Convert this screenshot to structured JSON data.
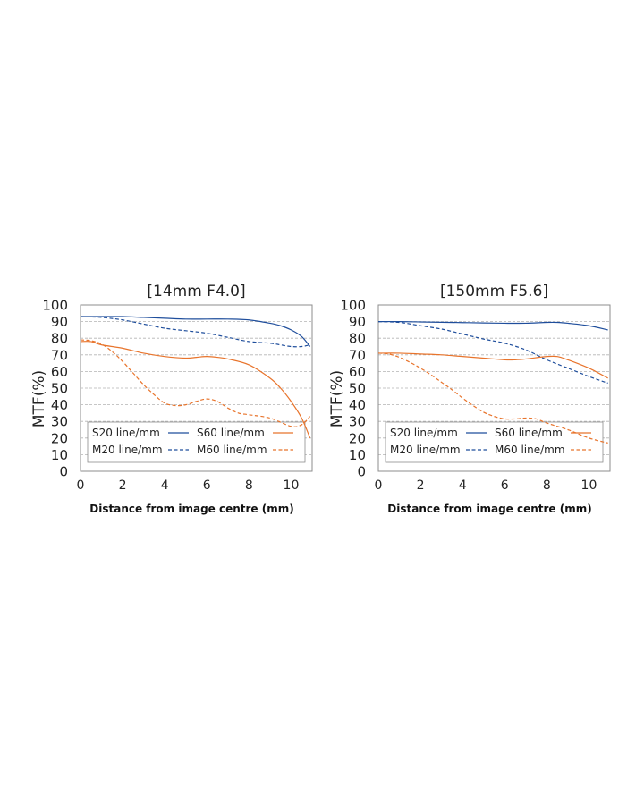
{
  "chart_data": [
    {
      "type": "line",
      "title": "[14mm F4.0]",
      "xlabel": "Distance from image centre (mm)",
      "ylabel": "MTF(%)",
      "xlim": [
        0,
        11
      ],
      "ylim": [
        0,
        100
      ],
      "xticks": [
        "0",
        "2",
        "4",
        "6",
        "8",
        "10"
      ],
      "yticks": [
        "0",
        "10",
        "20",
        "30",
        "40",
        "50",
        "60",
        "70",
        "80",
        "90",
        "100"
      ],
      "grid": true,
      "legend_position": "bottom",
      "series": [
        {
          "name": "S20 line/mm",
          "color": "#1f4e9c",
          "dash": false,
          "x": [
            0,
            1,
            2,
            3,
            4,
            5,
            6,
            7,
            8,
            9,
            9.5,
            10,
            10.5,
            10.9
          ],
          "y": [
            93,
            93,
            93,
            92.5,
            92,
            91.5,
            91.5,
            91.5,
            91,
            89,
            87.5,
            85,
            81,
            75
          ]
        },
        {
          "name": "M20 line/mm",
          "color": "#1f4e9c",
          "dash": true,
          "x": [
            0,
            1,
            2,
            3,
            4,
            5,
            6,
            7,
            8,
            9,
            9.5,
            10,
            10.5,
            10.9
          ],
          "y": [
            93,
            92.5,
            91,
            88.5,
            86,
            84.5,
            83,
            80.5,
            78,
            77,
            76,
            75,
            75,
            76
          ]
        },
        {
          "name": "S60 line/mm",
          "color": "#e8742c",
          "dash": false,
          "x": [
            0,
            0.5,
            1,
            2,
            3,
            4,
            5,
            5.5,
            6,
            6.5,
            7,
            8,
            9,
            9.5,
            10,
            10.5,
            10.9
          ],
          "y": [
            78,
            78,
            76,
            74,
            71,
            69,
            68,
            68.5,
            69,
            68.5,
            67.5,
            64,
            56,
            50,
            42,
            32,
            20
          ]
        },
        {
          "name": "M60 line/mm",
          "color": "#e8742c",
          "dash": true,
          "x": [
            0,
            0.5,
            1,
            1.5,
            2,
            2.5,
            3,
            3.5,
            4,
            4.5,
            5,
            5.5,
            6,
            6.5,
            7,
            7.5,
            8,
            9,
            10,
            10.5,
            10.9
          ],
          "y": [
            79,
            78.5,
            76.5,
            72,
            66,
            59,
            52,
            46,
            41,
            39.5,
            40,
            42,
            43.5,
            42,
            38,
            35,
            34,
            32,
            27,
            28,
            33
          ]
        }
      ]
    },
    {
      "type": "line",
      "title": "[150mm F5.6]",
      "xlabel": "Distance from image centre (mm)",
      "ylabel": "MTF(%)",
      "xlim": [
        0,
        11
      ],
      "ylim": [
        0,
        100
      ],
      "xticks": [
        "0",
        "2",
        "4",
        "6",
        "8",
        "10"
      ],
      "yticks": [
        "0",
        "10",
        "20",
        "30",
        "40",
        "50",
        "60",
        "70",
        "80",
        "90",
        "100"
      ],
      "grid": true,
      "legend_position": "bottom",
      "series": [
        {
          "name": "S20 line/mm",
          "color": "#1f4e9c",
          "dash": false,
          "x": [
            0,
            1,
            2,
            3,
            4,
            5,
            6,
            7,
            8,
            8.5,
            9,
            10,
            10.9
          ],
          "y": [
            90,
            90,
            89.8,
            89.6,
            89.4,
            89.2,
            89,
            89,
            89.5,
            89.5,
            89,
            87.5,
            85
          ]
        },
        {
          "name": "M20 line/mm",
          "color": "#1f4e9c",
          "dash": true,
          "x": [
            0,
            1,
            2,
            3,
            4,
            5,
            6,
            7,
            8,
            9,
            10,
            10.9
          ],
          "y": [
            90,
            89.5,
            87.5,
            85.5,
            82.5,
            79.5,
            77,
            73,
            67,
            62,
            57,
            53
          ]
        },
        {
          "name": "S60 line/mm",
          "color": "#e8742c",
          "dash": false,
          "x": [
            0,
            1,
            2,
            3,
            4,
            5,
            6,
            6.5,
            7,
            8,
            8.5,
            9,
            10,
            10.9
          ],
          "y": [
            71,
            71,
            70.5,
            70,
            69,
            68,
            67,
            67,
            67.5,
            69,
            69,
            67,
            62,
            56
          ]
        },
        {
          "name": "M60 line/mm",
          "color": "#e8742c",
          "dash": true,
          "x": [
            0,
            0.5,
            1,
            1.5,
            2,
            2.5,
            3,
            3.5,
            4,
            4.5,
            5,
            5.5,
            6,
            6.5,
            7,
            7.5,
            8,
            9,
            10,
            10.9
          ],
          "y": [
            71,
            70.5,
            68.5,
            65.5,
            62,
            58,
            53.5,
            49,
            44,
            39.5,
            35.5,
            33,
            31.5,
            31.5,
            32,
            31.5,
            29,
            25,
            20,
            17
          ]
        }
      ]
    }
  ]
}
